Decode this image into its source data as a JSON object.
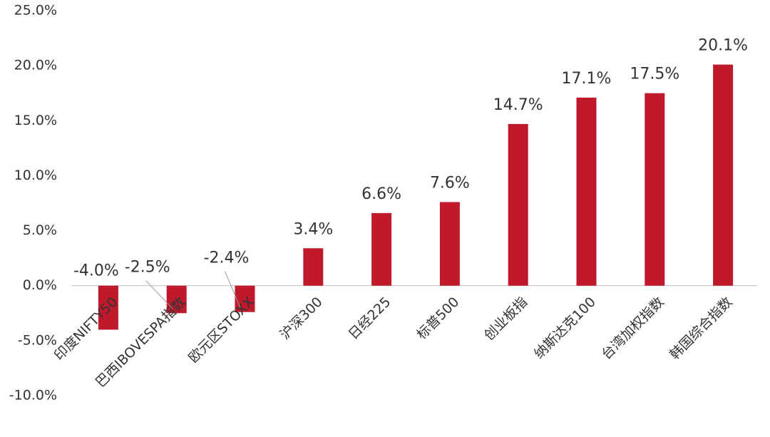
{
  "chart_data": {
    "type": "bar",
    "categories": [
      "印度NIFTY50",
      "巴西IBOVESPA指数",
      "欧元区STOXX",
      "沪深300",
      "日经225",
      "标普500",
      "创业板指",
      "纳斯达克100",
      "台湾加权指数",
      "韩国综合指数"
    ],
    "values": [
      -4.0,
      -2.5,
      -2.4,
      3.4,
      6.6,
      7.6,
      14.7,
      17.1,
      17.5,
      20.1
    ],
    "value_labels": [
      "-4.0%",
      "-2.5%",
      "-2.4%",
      "3.4%",
      "6.6%",
      "7.6%",
      "14.7%",
      "17.1%",
      "17.5%",
      "20.1%"
    ],
    "color": "#c0192c",
    "ylim": [
      -10,
      25
    ],
    "yticks": [
      {
        "value": -10,
        "label": "-10.0%"
      },
      {
        "value": -5,
        "label": "-5.0%"
      },
      {
        "value": 0,
        "label": "0.0%"
      },
      {
        "value": 5,
        "label": "5.0%"
      },
      {
        "value": 10,
        "label": "10.0%"
      },
      {
        "value": 15,
        "label": "15.0%"
      },
      {
        "value": 20,
        "label": "20.0%"
      },
      {
        "value": 25,
        "label": "25.0%"
      }
    ],
    "grid": false
  }
}
